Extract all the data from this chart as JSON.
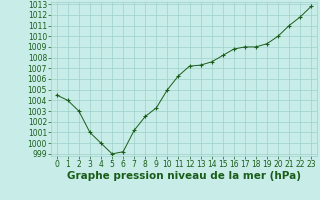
{
  "x": [
    0,
    1,
    2,
    3,
    4,
    5,
    6,
    7,
    8,
    9,
    10,
    11,
    12,
    13,
    14,
    15,
    16,
    17,
    18,
    19,
    20,
    21,
    22,
    23
  ],
  "y": [
    1004.5,
    1004.0,
    1003.0,
    1001.0,
    1000.0,
    999.0,
    999.2,
    1001.2,
    1002.5,
    1003.3,
    1005.0,
    1006.3,
    1007.2,
    1007.3,
    1007.6,
    1008.2,
    1008.8,
    1009.0,
    1009.0,
    1009.3,
    1010.0,
    1011.0,
    1011.8,
    1012.8
  ],
  "ylim_min": 998.8,
  "ylim_max": 1013.2,
  "xlim_min": -0.5,
  "xlim_max": 23.5,
  "yticks": [
    999,
    1000,
    1001,
    1002,
    1003,
    1004,
    1005,
    1006,
    1007,
    1008,
    1009,
    1010,
    1011,
    1012,
    1013
  ],
  "xticks": [
    0,
    1,
    2,
    3,
    4,
    5,
    6,
    7,
    8,
    9,
    10,
    11,
    12,
    13,
    14,
    15,
    16,
    17,
    18,
    19,
    20,
    21,
    22,
    23
  ],
  "line_color": "#1a5c1a",
  "bg_color": "#c8ede8",
  "grid_color": "#9ecfca",
  "xlabel": "Graphe pression niveau de la mer (hPa)",
  "xlabel_color": "#1a5c1a",
  "xlabel_fontsize": 7.5,
  "tick_fontsize": 5.5,
  "tick_color": "#1a5c1a",
  "linewidth": 0.7,
  "markersize": 3.5,
  "markeredgewidth": 0.8
}
